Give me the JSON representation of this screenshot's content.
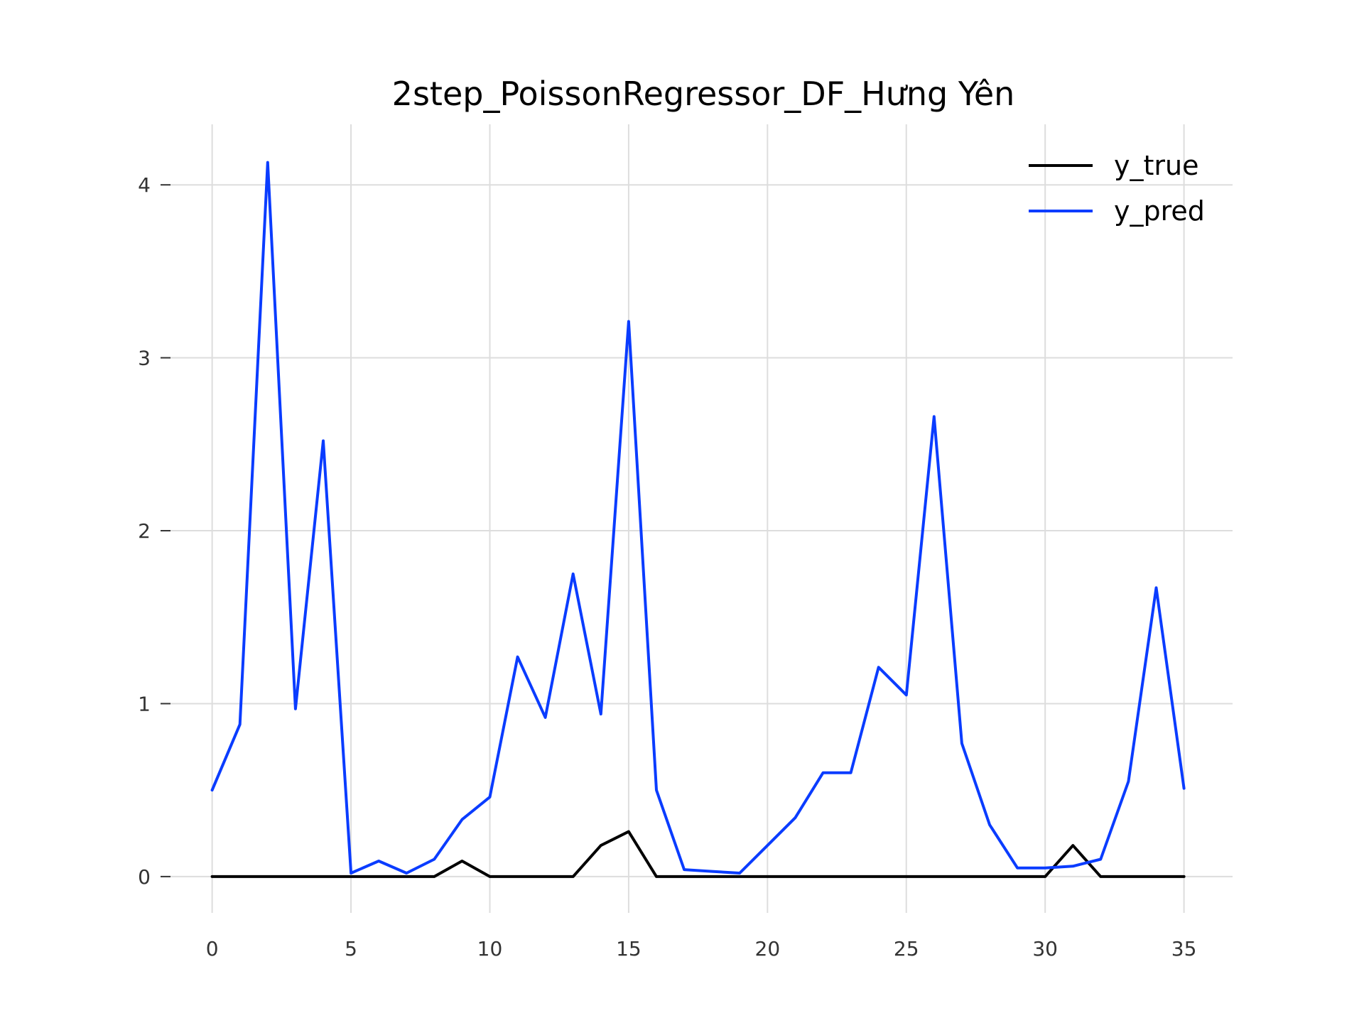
{
  "chart_data": {
    "type": "line",
    "title": "2step_PoissonRegressor_DF_Hưng Yên",
    "xlabel": "",
    "ylabel": "",
    "xlim": [
      -1.5,
      36.75
    ],
    "ylim": [
      -0.21,
      4.35
    ],
    "grid": true,
    "legend_position": "top-right",
    "x_ticks": [
      0,
      5,
      10,
      15,
      20,
      25,
      30,
      35
    ],
    "x_tick_labels": [
      "0",
      "5",
      "10",
      "15",
      "20",
      "25",
      "30",
      "35"
    ],
    "y_ticks": [
      0,
      1,
      2,
      3,
      4
    ],
    "y_tick_labels": [
      "0",
      "1",
      "2",
      "3",
      "4"
    ],
    "x": [
      0,
      1,
      2,
      3,
      4,
      5,
      6,
      7,
      8,
      9,
      10,
      11,
      12,
      13,
      14,
      15,
      16,
      17,
      18,
      19,
      20,
      21,
      22,
      23,
      24,
      25,
      26,
      27,
      28,
      29,
      30,
      31,
      32,
      33,
      34,
      35
    ],
    "series": [
      {
        "name": "y_true",
        "color": "#000000",
        "values": [
          0,
          0,
          0,
          0,
          0,
          0,
          0,
          0,
          0,
          0.09,
          0,
          0,
          0,
          0,
          0.18,
          0.26,
          0,
          0,
          0,
          0,
          0,
          0,
          0,
          0,
          0,
          0,
          0,
          0,
          0,
          0,
          0,
          0.18,
          0,
          0,
          0,
          0
        ]
      },
      {
        "name": "y_pred",
        "color": "#0a3cff",
        "values": [
          0.5,
          0.88,
          4.13,
          0.97,
          2.52,
          0.02,
          0.09,
          0.02,
          0.1,
          0.33,
          0.46,
          1.27,
          0.92,
          1.75,
          0.94,
          3.21,
          0.5,
          0.04,
          0.03,
          0.02,
          0.18,
          0.34,
          0.6,
          0.6,
          1.21,
          1.05,
          2.66,
          0.77,
          0.3,
          0.05,
          0.05,
          0.06,
          0.1,
          0.55,
          1.67,
          0.51
        ]
      }
    ]
  }
}
